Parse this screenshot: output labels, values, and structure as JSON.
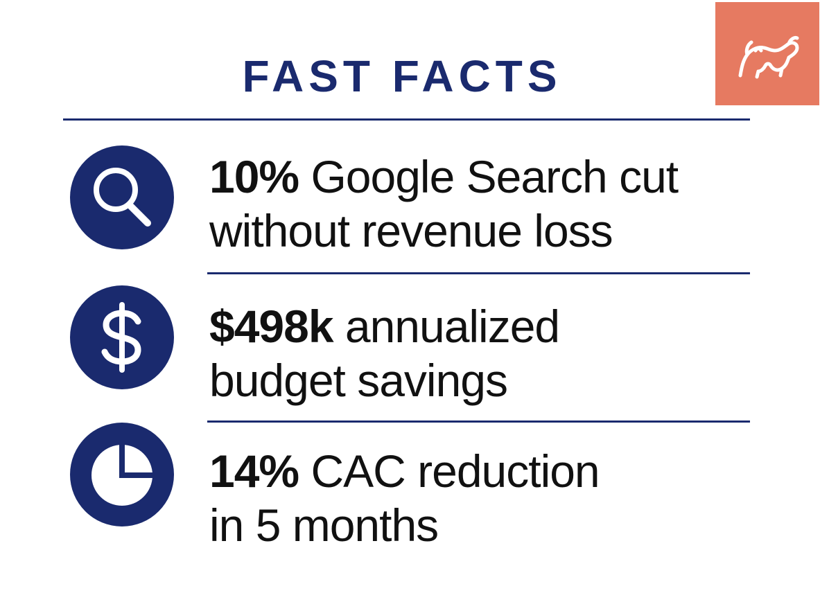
{
  "header": {
    "title": "FAST FACTS",
    "logo_icon": "bull-logo-icon"
  },
  "facts": [
    {
      "icon": "search-icon",
      "highlight": "10%",
      "rest_line1": " Google Search cut",
      "line2": "without revenue loss"
    },
    {
      "icon": "dollar-icon",
      "highlight": "$498k",
      "rest_line1": " annualized",
      "line2": "budget savings"
    },
    {
      "icon": "pie-chart-icon",
      "highlight": "14%",
      "rest_line1": " CAC reduction",
      "line2": "in 5 months"
    }
  ],
  "colors": {
    "navy": "#1a2a6e",
    "logo_bg": "#e67a61",
    "text": "#111111",
    "background": "#ffffff"
  }
}
